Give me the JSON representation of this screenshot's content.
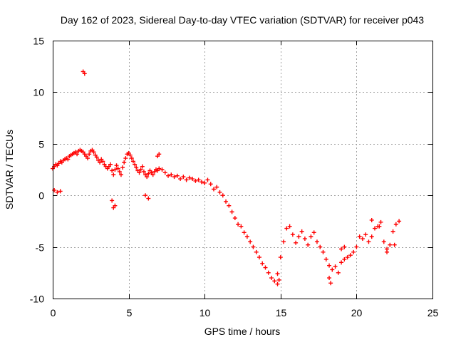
{
  "chart_data": {
    "type": "scatter",
    "title": "Day 162 of 2023, Sidereal Day-to-day VTEC variation (SDTVAR) for receiver p043",
    "xlabel": "GPS time / hours",
    "ylabel": "SDTVAR / TECUs",
    "xlim": [
      0,
      25
    ],
    "ylim": [
      -10,
      15
    ],
    "xticks": [
      "0",
      "5",
      "10",
      "15",
      "20",
      "25"
    ],
    "yticks": [
      "-10",
      "-5",
      "0",
      "5",
      "10",
      "15"
    ],
    "xtick_values": [
      0,
      5,
      10,
      15,
      20,
      25
    ],
    "ytick_values": [
      -10,
      -5,
      0,
      5,
      10,
      15
    ],
    "grid": true,
    "marker": "+",
    "series": [
      {
        "name": "SDTVAR",
        "color": "#ff0000",
        "x": [
          0.0,
          0.1,
          0.2,
          0.3,
          0.4,
          0.5,
          0.6,
          0.7,
          0.8,
          0.9,
          1.0,
          1.1,
          1.2,
          1.3,
          1.4,
          1.5,
          1.6,
          1.7,
          1.8,
          1.9,
          2.0,
          2.1,
          2.2,
          2.3,
          2.4,
          2.5,
          2.6,
          2.7,
          2.8,
          2.9,
          3.0,
          3.1,
          3.2,
          3.3,
          3.4,
          3.5,
          3.6,
          3.7,
          3.8,
          3.9,
          4.0,
          4.1,
          4.2,
          4.3,
          4.4,
          4.5,
          4.6,
          4.7,
          4.8,
          4.9,
          5.0,
          5.1,
          5.2,
          5.3,
          5.4,
          5.5,
          5.6,
          5.7,
          5.8,
          5.9,
          6.0,
          6.1,
          6.2,
          6.3,
          6.4,
          6.5,
          6.6,
          6.7,
          6.8,
          6.9,
          7.0,
          7.2,
          7.4,
          7.6,
          7.8,
          8.0,
          8.2,
          8.4,
          8.6,
          8.8,
          9.0,
          9.2,
          9.4,
          9.6,
          9.8,
          10.0,
          10.2,
          10.4,
          10.6,
          10.8,
          11.0,
          11.2,
          11.4,
          11.6,
          11.8,
          12.0,
          12.2,
          12.4,
          12.6,
          12.8,
          13.0,
          13.2,
          13.4,
          13.6,
          13.8,
          14.0,
          14.2,
          14.4,
          14.6,
          14.8,
          15.0,
          15.2,
          15.4,
          15.6,
          15.8,
          16.0,
          16.2,
          16.4,
          16.6,
          16.8,
          17.0,
          17.2,
          17.4,
          17.6,
          17.8,
          18.0,
          18.2,
          18.4,
          18.6,
          18.8,
          19.0,
          19.2,
          19.4,
          19.6,
          19.8,
          20.0,
          20.2,
          20.4,
          20.6,
          20.8,
          21.0,
          21.2,
          21.4,
          21.6,
          21.8,
          22.0,
          22.2,
          22.4,
          22.6,
          22.8,
          2.0,
          2.1,
          0.1,
          0.3,
          0.5,
          4.0,
          4.1,
          3.9,
          6.9,
          7.0,
          6.1,
          6.3,
          18.2,
          18.3,
          14.8,
          14.9,
          19.0,
          19.2,
          21.0,
          21.5,
          22.0,
          22.5
        ],
        "y": [
          2.6,
          2.8,
          3.0,
          2.9,
          3.1,
          3.3,
          3.2,
          3.4,
          3.5,
          3.6,
          3.5,
          3.8,
          3.9,
          4.0,
          4.1,
          4.2,
          4.0,
          4.3,
          4.4,
          4.3,
          4.2,
          4.0,
          3.8,
          3.6,
          4.0,
          4.3,
          4.4,
          4.2,
          3.9,
          3.7,
          3.4,
          3.2,
          3.5,
          3.3,
          3.0,
          2.8,
          2.6,
          2.8,
          3.0,
          2.4,
          2.0,
          2.5,
          2.9,
          2.6,
          2.3,
          2.0,
          2.7,
          3.2,
          3.6,
          4.0,
          4.1,
          3.9,
          3.6,
          3.3,
          3.0,
          2.7,
          2.4,
          2.2,
          2.5,
          2.8,
          2.3,
          2.0,
          1.8,
          2.1,
          2.4,
          2.2,
          2.0,
          2.3,
          2.5,
          2.4,
          2.6,
          2.5,
          2.2,
          1.9,
          2.0,
          1.8,
          1.9,
          1.6,
          1.8,
          1.5,
          1.7,
          1.6,
          1.4,
          1.5,
          1.3,
          1.2,
          1.5,
          1.1,
          0.6,
          0.8,
          0.3,
          0.0,
          -0.6,
          -1.0,
          -1.6,
          -2.2,
          -2.8,
          -3.0,
          -3.6,
          -4.0,
          -4.5,
          -5.0,
          -5.5,
          -6.0,
          -6.6,
          -7.0,
          -7.5,
          -8.0,
          -8.3,
          -7.6,
          -6.0,
          -4.5,
          -3.2,
          -3.0,
          -3.8,
          -4.6,
          -4.0,
          -3.5,
          -4.2,
          -4.8,
          -4.0,
          -3.6,
          -4.5,
          -5.0,
          -5.5,
          -6.2,
          -6.8,
          -7.2,
          -6.9,
          -7.5,
          -6.5,
          -6.2,
          -6.0,
          -5.8,
          -5.5,
          -5.0,
          -4.0,
          -4.2,
          -3.8,
          -4.5,
          -4.0,
          -3.2,
          -3.0,
          -2.6,
          -4.5,
          -5.2,
          -4.8,
          -3.5,
          -2.8,
          -2.5,
          12.0,
          11.8,
          0.5,
          0.3,
          0.4,
          -1.2,
          -1.0,
          -0.5,
          3.8,
          4.0,
          0.0,
          -0.3,
          -8.0,
          -8.5,
          -8.6,
          -8.2,
          -5.2,
          -5.0,
          -2.4,
          -3.0,
          -5.5,
          -4.8
        ]
      }
    ]
  }
}
